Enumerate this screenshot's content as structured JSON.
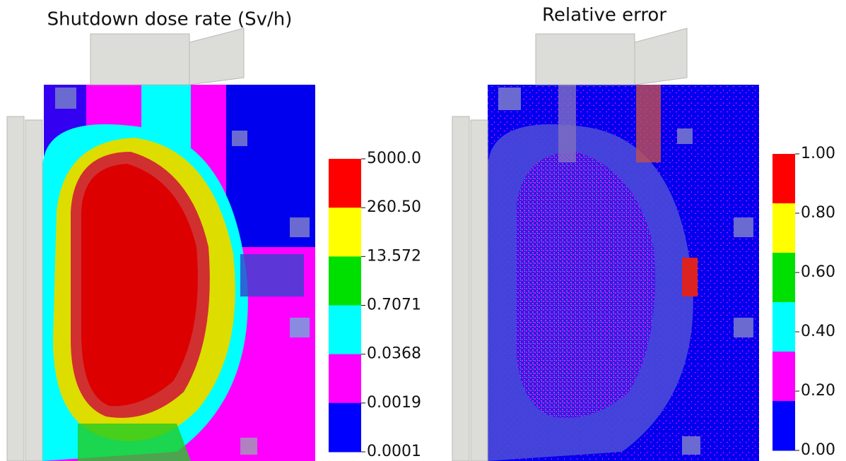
{
  "panels": [
    {
      "title": "Shutdown dose rate (Sv/h)",
      "colorbar": {
        "labels": [
          "5000.0",
          "260.50",
          "13.572",
          "0.7071",
          "0.0368",
          "0.0019",
          "0.0001"
        ],
        "colors": [
          "#ff0000",
          "#ffff00",
          "#00e000",
          "#00ffff",
          "#ff00ff",
          "#0000ff"
        ]
      }
    },
    {
      "title": "Relative error",
      "colorbar": {
        "labels": [
          "1.00",
          "0.80",
          "0.60",
          "0.40",
          "0.20",
          "0.00"
        ],
        "colors": [
          "#ff0000",
          "#ffff00",
          "#00e000",
          "#00ffff",
          "#ff00ff",
          "#0000ff"
        ]
      }
    }
  ]
}
